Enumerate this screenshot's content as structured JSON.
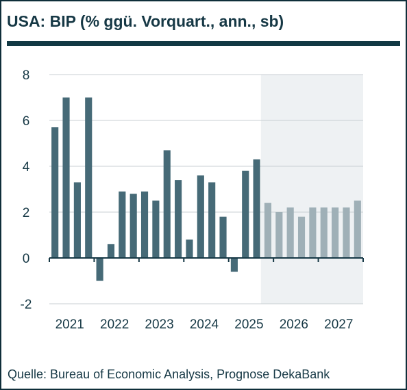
{
  "header": {
    "title": "USA: BIP (% ggü. Vorquart., ann., sb)"
  },
  "source": "Quelle: Bureau of Economic Analysis, Prognose DekaBank",
  "chart_data": {
    "type": "bar",
    "title": "USA: BIP (% ggü. Vorquart., ann., sb)",
    "xlabel": "",
    "ylabel": "",
    "ylim": [
      -2,
      8
    ],
    "yticks": [
      8,
      6,
      4,
      2,
      0,
      -2
    ],
    "year_labels": [
      "2021",
      "2022",
      "2023",
      "2024",
      "2025",
      "2026",
      "2027"
    ],
    "categories": [
      "2021Q1",
      "2021Q2",
      "2021Q3",
      "2021Q4",
      "2022Q1",
      "2022Q2",
      "2022Q3",
      "2022Q4",
      "2023Q1",
      "2023Q2",
      "2023Q3",
      "2023Q4",
      "2024Q1",
      "2024Q2",
      "2024Q3",
      "2024Q4",
      "2025Q1",
      "2025Q2",
      "2025Q3",
      "2025Q4",
      "2026Q1",
      "2026Q2",
      "2026Q3",
      "2026Q4",
      "2027Q1",
      "2027Q2",
      "2027Q3",
      "2027Q4"
    ],
    "series": [
      {
        "values": [
          5.7,
          7.0,
          3.3,
          7.0,
          -1.0,
          0.6,
          2.9,
          2.8,
          2.9,
          2.5,
          4.7,
          3.4,
          0.8,
          3.6,
          3.3,
          1.8,
          -0.6,
          3.8,
          4.3,
          2.4,
          2.0,
          2.2,
          1.8,
          2.2,
          2.2,
          2.2,
          2.2,
          2.5
        ]
      }
    ],
    "forecast_from_index": 19,
    "grid": true,
    "colors": {
      "actual": "#466a77",
      "forecast": "#9fb0b7",
      "forecast_band": "#eef1f3",
      "grid": "#c8cfd3",
      "axis": "#163845"
    }
  }
}
